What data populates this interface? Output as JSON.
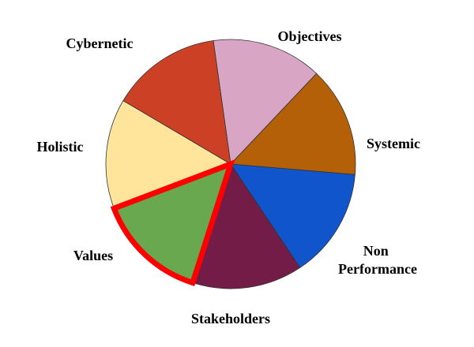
{
  "chart_data": {
    "type": "pie",
    "title": "",
    "slices": [
      {
        "label": "Objectives",
        "lines": [
          "Objectives"
        ],
        "value": 1,
        "color": "#d8a6c4"
      },
      {
        "label": "Systemic",
        "lines": [
          "Systemic"
        ],
        "value": 1,
        "color": "#b46008"
      },
      {
        "label": "Non Performance",
        "lines": [
          "Non",
          "Performance"
        ],
        "value": 1,
        "color": "#1055cc"
      },
      {
        "label": "Stakeholders",
        "lines": [
          "Stakeholders"
        ],
        "value": 1,
        "color": "#741c48"
      },
      {
        "label": "Values",
        "lines": [
          "Values"
        ],
        "value": 1,
        "color": "#6aa84f",
        "highlighted": true,
        "highlight_color": "#ff0000"
      },
      {
        "label": "Holistic",
        "lines": [
          "Holistic"
        ],
        "value": 1,
        "color": "#ffe49c"
      },
      {
        "label": "Cybernetic",
        "lines": [
          "Cybernetic"
        ],
        "value": 1,
        "color": "#cc4125"
      }
    ],
    "legend": "none"
  }
}
